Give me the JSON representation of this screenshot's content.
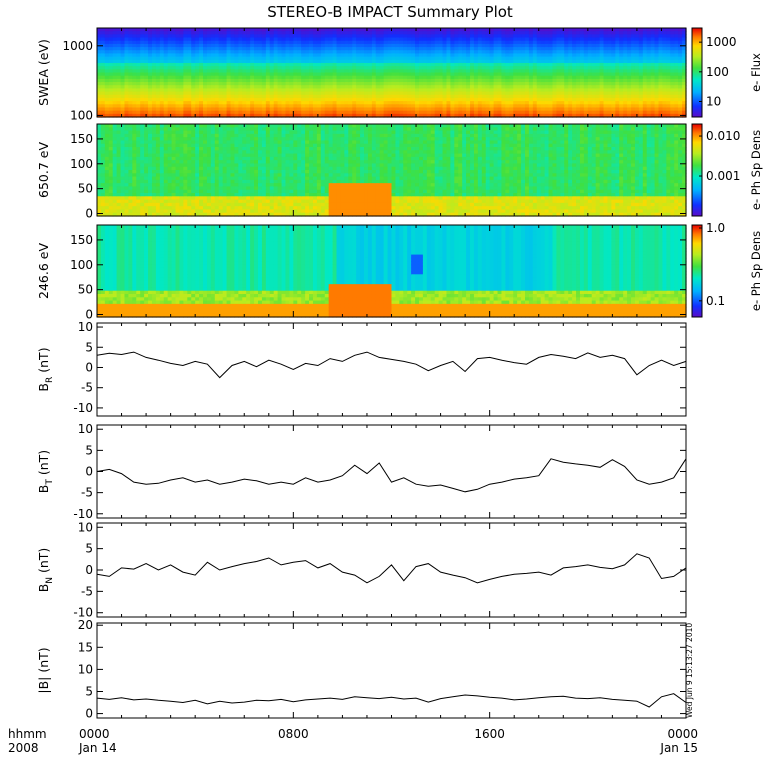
{
  "title": "STEREO-B IMPACT Summary Plot",
  "time_axis": {
    "corner_label_1": "hhmm",
    "corner_label_2": "2008",
    "ticks": [
      {
        "time": "0000",
        "date": "Jan 14",
        "hour": 0
      },
      {
        "time": "0800",
        "date": "",
        "hour": 8
      },
      {
        "time": "1600",
        "date": "",
        "hour": 16
      },
      {
        "time": "0000",
        "date": "Jan 15",
        "hour": 24
      }
    ],
    "minor_every_hours": 1
  },
  "stamp": "Wed Jun  9 15:13:27 2010",
  "colors": {
    "line": "#000000",
    "frame": "#000000"
  },
  "chart_data": [
    {
      "type": "heatmap",
      "id": "swea",
      "ylabel": "SWEA (eV)",
      "ylog": true,
      "ylim": [
        95,
        1800
      ],
      "yticks": [
        {
          "v": 100,
          "t": "100"
        },
        {
          "v": 1000,
          "t": "1000"
        }
      ],
      "colorbar": {
        "label": "e- Flux",
        "log": true,
        "range": [
          3,
          3000
        ],
        "ticks": [
          {
            "v": 10,
            "t": "10"
          },
          {
            "v": 100,
            "t": "100"
          },
          {
            "v": 1000,
            "t": "1000"
          }
        ]
      }
    },
    {
      "type": "heatmap",
      "id": "pad650",
      "ylabel": "650.7 eV",
      "ylim": [
        -5,
        180
      ],
      "yticks": [
        {
          "v": 0,
          "t": "0"
        },
        {
          "v": 50,
          "t": "50"
        },
        {
          "v": 100,
          "t": "100"
        },
        {
          "v": 150,
          "t": "150"
        }
      ],
      "colorbar": {
        "label": "e- Ph Sp Dens",
        "log": true,
        "range": [
          0.0001,
          0.02
        ],
        "ticks": [
          {
            "v": 0.001,
            "t": "0.001"
          },
          {
            "v": 0.01,
            "t": "0.010"
          }
        ]
      }
    },
    {
      "type": "heatmap",
      "id": "pad246",
      "ylabel": "246.6 eV",
      "ylim": [
        -5,
        180
      ],
      "yticks": [
        {
          "v": 0,
          "t": "0"
        },
        {
          "v": 50,
          "t": "50"
        },
        {
          "v": 100,
          "t": "100"
        },
        {
          "v": 150,
          "t": "150"
        }
      ],
      "colorbar": {
        "label": "e- Ph Sp Dens",
        "log": true,
        "range": [
          0.06,
          1.1
        ],
        "ticks": [
          {
            "v": 0.1,
            "t": "0.1"
          },
          {
            "v": 1.0,
            "t": "1.0"
          }
        ]
      }
    },
    {
      "type": "line",
      "id": "br",
      "ylabel": "BR (nT)",
      "ylabel_main": "B",
      "ylabel_sub": "R",
      "ylabel_unit": " (nT)",
      "ylim": [
        -12,
        11
      ],
      "yticks": [
        {
          "v": -10,
          "t": "-10"
        },
        {
          "v": -5,
          "t": "-5"
        },
        {
          "v": 0,
          "t": "0"
        },
        {
          "v": 5,
          "t": "5"
        },
        {
          "v": 10,
          "t": "10"
        }
      ],
      "x": [
        0,
        0.5,
        1,
        1.5,
        2,
        2.5,
        3,
        3.5,
        4,
        4.5,
        5,
        5.5,
        6,
        6.5,
        7,
        7.5,
        8,
        8.5,
        9,
        9.5,
        10,
        10.5,
        11,
        11.5,
        12,
        12.5,
        13,
        13.5,
        14,
        14.5,
        15,
        15.5,
        16,
        16.5,
        17,
        17.5,
        18,
        18.5,
        19,
        19.5,
        20,
        20.5,
        21,
        21.5,
        22,
        22.5,
        23,
        23.5,
        24
      ],
      "y": [
        3,
        3.5,
        3.2,
        3.8,
        2.5,
        1.8,
        1,
        0.5,
        1.5,
        0.8,
        -2.5,
        0.5,
        1.5,
        0.2,
        1.8,
        0.8,
        -0.5,
        1,
        0.5,
        2.2,
        1.5,
        3,
        3.8,
        2.5,
        2,
        1.5,
        0.8,
        -0.8,
        0.5,
        1.5,
        -1,
        2.2,
        2.5,
        1.8,
        1.2,
        0.8,
        2.5,
        3.2,
        2.8,
        2.2,
        3.6,
        2.5,
        3,
        2.2,
        -1.8,
        0.5,
        1.8,
        0.5,
        1.5
      ]
    },
    {
      "type": "line",
      "id": "bt",
      "ylabel": "BT (nT)",
      "ylabel_main": "B",
      "ylabel_sub": "T",
      "ylabel_unit": " (nT)",
      "ylim": [
        -11,
        11
      ],
      "yticks": [
        {
          "v": -10,
          "t": "-10"
        },
        {
          "v": -5,
          "t": "-5"
        },
        {
          "v": 0,
          "t": "0"
        },
        {
          "v": 5,
          "t": "5"
        },
        {
          "v": 10,
          "t": "10"
        }
      ],
      "x": [
        0,
        0.5,
        1,
        1.5,
        2,
        2.5,
        3,
        3.5,
        4,
        4.5,
        5,
        5.5,
        6,
        6.5,
        7,
        7.5,
        8,
        8.5,
        9,
        9.5,
        10,
        10.5,
        11,
        11.5,
        12,
        12.5,
        13,
        13.5,
        14,
        14.5,
        15,
        15.5,
        16,
        16.5,
        17,
        17.5,
        18,
        18.5,
        19,
        19.5,
        20,
        20.5,
        21,
        21.5,
        22,
        22.5,
        23,
        23.5,
        24
      ],
      "y": [
        0,
        0.5,
        -0.5,
        -2.5,
        -3,
        -2.8,
        -2,
        -1.5,
        -2.5,
        -2,
        -3,
        -2.5,
        -1.8,
        -2.2,
        -3,
        -2.5,
        -3,
        -1.5,
        -2.5,
        -2,
        -1,
        1.5,
        -0.5,
        2,
        -2.5,
        -1.5,
        -3,
        -3.5,
        -3.2,
        -4,
        -4.8,
        -4.2,
        -3,
        -2.5,
        -1.8,
        -1.5,
        -1,
        3,
        2.2,
        1.8,
        1.5,
        1,
        2.8,
        1.2,
        -2,
        -3,
        -2.5,
        -1.5,
        3
      ]
    },
    {
      "type": "line",
      "id": "bn",
      "ylabel": "BN (nT)",
      "ylabel_main": "B",
      "ylabel_sub": "N",
      "ylabel_unit": " (nT)",
      "ylim": [
        -11,
        11
      ],
      "yticks": [
        {
          "v": -10,
          "t": "-10"
        },
        {
          "v": -5,
          "t": "-5"
        },
        {
          "v": 0,
          "t": "0"
        },
        {
          "v": 5,
          "t": "5"
        },
        {
          "v": 10,
          "t": "10"
        }
      ],
      "x": [
        0,
        0.5,
        1,
        1.5,
        2,
        2.5,
        3,
        3.5,
        4,
        4.5,
        5,
        5.5,
        6,
        6.5,
        7,
        7.5,
        8,
        8.5,
        9,
        9.5,
        10,
        10.5,
        11,
        11.5,
        12,
        12.5,
        13,
        13.5,
        14,
        14.5,
        15,
        15.5,
        16,
        16.5,
        17,
        17.5,
        18,
        18.5,
        19,
        19.5,
        20,
        20.5,
        21,
        21.5,
        22,
        22.5,
        23,
        23.5,
        24
      ],
      "y": [
        -1,
        -1.5,
        0.5,
        0.2,
        1.5,
        0,
        1.2,
        -0.5,
        -1.2,
        1.8,
        0,
        0.8,
        1.5,
        2,
        2.8,
        1.2,
        1.8,
        2.2,
        0.5,
        1.5,
        -0.5,
        -1.2,
        -3,
        -1.5,
        1.2,
        -2.5,
        0.8,
        1.5,
        -0.5,
        -1.2,
        -1.8,
        -3,
        -2.2,
        -1.5,
        -1,
        -0.8,
        -0.5,
        -1.2,
        0.5,
        0.8,
        1.2,
        0.6,
        0.3,
        1.2,
        3.8,
        2.8,
        -2,
        -1.5,
        0.5
      ]
    },
    {
      "type": "line",
      "id": "bmag",
      "ylabel": "|B| (nT)",
      "ylabel_main": "|B|",
      "ylabel_sub": "",
      "ylabel_unit": " (nT)",
      "ylim": [
        -1,
        20.5
      ],
      "yticks": [
        {
          "v": 0,
          "t": "0"
        },
        {
          "v": 5,
          "t": "5"
        },
        {
          "v": 10,
          "t": "10"
        },
        {
          "v": 15,
          "t": "15"
        },
        {
          "v": 20,
          "t": "20"
        }
      ],
      "x": [
        0,
        0.5,
        1,
        1.5,
        2,
        2.5,
        3,
        3.5,
        4,
        4.5,
        5,
        5.5,
        6,
        6.5,
        7,
        7.5,
        8,
        8.5,
        9,
        9.5,
        10,
        10.5,
        11,
        11.5,
        12,
        12.5,
        13,
        13.5,
        14,
        14.5,
        15,
        15.5,
        16,
        16.5,
        17,
        17.5,
        18,
        18.5,
        19,
        19.5,
        20,
        20.5,
        21,
        21.5,
        22,
        22.5,
        23,
        23.5,
        24
      ],
      "y": [
        3.5,
        3.2,
        3.6,
        3.1,
        3.3,
        3,
        2.8,
        2.5,
        3,
        2.2,
        2.8,
        2.4,
        2.6,
        3,
        2.9,
        3.2,
        2.7,
        3.1,
        3.3,
        3.5,
        3.2,
        3.8,
        3.6,
        3.4,
        3.7,
        3.3,
        3.5,
        2.6,
        3.4,
        3.8,
        4.2,
        4,
        3.7,
        3.5,
        3.1,
        3.3,
        3.6,
        3.8,
        3.9,
        3.5,
        3.4,
        3.6,
        3.2,
        3,
        2.8,
        1.5,
        3.8,
        4.5,
        2.5
      ]
    }
  ]
}
